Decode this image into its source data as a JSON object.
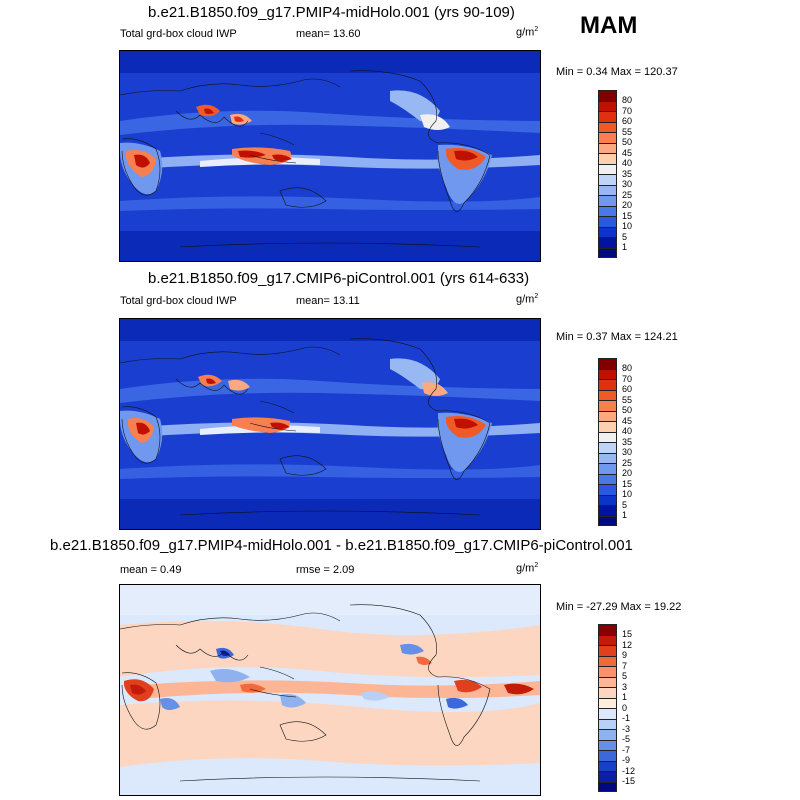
{
  "season": "MAM",
  "panels": [
    {
      "id": "top",
      "title": "b.e21.B1850.f09_g17.PMIP4-midHolo.001 (yrs 90-109)",
      "left_label": "Total grd-box cloud IWP",
      "mean_label": "mean=  13.60",
      "rmse_label": "",
      "units": "g/m",
      "units_sup": "2",
      "minmax": "Min =   0.34 Max = 120.37",
      "colorbar": {
        "labels": [
          "80",
          "70",
          "60",
          "55",
          "50",
          "45",
          "40",
          "35",
          "30",
          "25",
          "20",
          "15",
          "10",
          "5",
          "1"
        ],
        "colors": [
          "#800000",
          "#c01000",
          "#e03010",
          "#f05a28",
          "#f88050",
          "#fca880",
          "#fdd0b0",
          "#f0f0f0",
          "#c0d4f8",
          "#98b8f4",
          "#7098ee",
          "#4a78e8",
          "#2a58e0",
          "#0c34c8",
          "#0014a0",
          "#000a80"
        ]
      }
    },
    {
      "id": "middle",
      "title": "b.e21.B1850.f09_g17.CMIP6-piControl.001 (yrs 614-633)",
      "left_label": "Total grd-box cloud IWP",
      "mean_label": "mean=  13.11",
      "rmse_label": "",
      "units": "g/m",
      "units_sup": "2",
      "minmax": "Min =   0.37 Max = 124.21",
      "colorbar": {
        "labels": [
          "80",
          "70",
          "60",
          "55",
          "50",
          "45",
          "40",
          "35",
          "30",
          "25",
          "20",
          "15",
          "10",
          "5",
          "1"
        ],
        "colors": [
          "#800000",
          "#c01000",
          "#e03010",
          "#f05a28",
          "#f88050",
          "#fca880",
          "#fdd0b0",
          "#f0f0f0",
          "#c0d4f8",
          "#98b8f4",
          "#7098ee",
          "#4a78e8",
          "#2a58e0",
          "#0c34c8",
          "#0014a0",
          "#000a80"
        ]
      }
    },
    {
      "id": "bottom",
      "title": "b.e21.B1850.f09_g17.PMIP4-midHolo.001 - b.e21.B1850.f09_g17.CMIP6-piControl.001",
      "left_label": "mean =   0.49",
      "mean_label": "",
      "rmse_label": "rmse =   2.09",
      "units": "g/m",
      "units_sup": "2",
      "minmax": "Min = -27.29 Max =  19.22",
      "colorbar": {
        "labels": [
          "15",
          "12",
          "9",
          "7",
          "5",
          "3",
          "1",
          "0",
          "-1",
          "-3",
          "-5",
          "-7",
          "-9",
          "-12",
          "-15"
        ],
        "colors": [
          "#8a0000",
          "#c41a0a",
          "#e0401e",
          "#f06a3c",
          "#f8926a",
          "#fcb696",
          "#fdd6c2",
          "#fdecdf",
          "#dce8fb",
          "#b8cff6",
          "#8fb2ef",
          "#6690e6",
          "#3c68da",
          "#1a40c8",
          "#0a1ea8",
          "#000880"
        ]
      }
    }
  ]
}
